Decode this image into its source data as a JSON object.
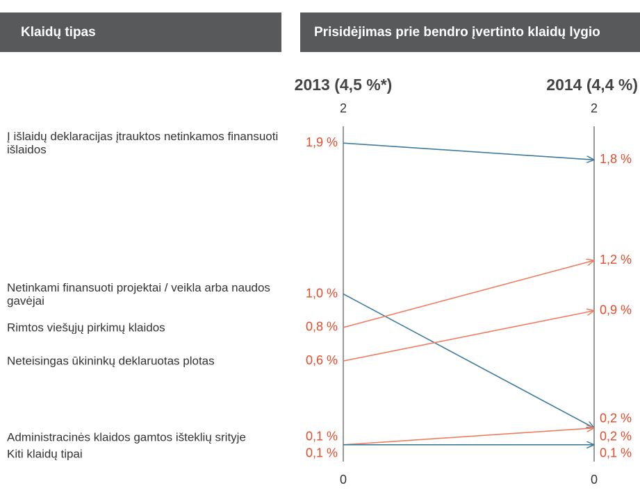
{
  "chart_data": {
    "type": "slope",
    "header_left": "Klaidų tipas",
    "header_right": "Prisidėjimas prie bendro įvertinto klaidų lygio",
    "periods": [
      "2013 (4,5 %*)",
      "2014 (4,4 %)"
    ],
    "ylim": [
      0,
      2
    ],
    "yticks": [
      0,
      2
    ],
    "series": [
      {
        "name": "Į išlaidų deklaracijas įtrauktos netinkamos finansuoti išlaidos",
        "color": "#3e7a9e",
        "values": [
          1.9,
          1.8
        ],
        "value_labels": [
          "1,9 %",
          "1,8 %"
        ]
      },
      {
        "name": "Netinkami finansuoti projektai / veikla arba naudos gavėjai",
        "color": "#3e7a9e",
        "values": [
          1.0,
          0.2
        ],
        "value_labels": [
          "1,0 %",
          "0,2 %"
        ]
      },
      {
        "name": "Rimtos viešųjų pirkimų klaidos",
        "color": "#f07b5f",
        "values": [
          0.8,
          1.2
        ],
        "value_labels": [
          "0,8 %",
          "1,2 %"
        ]
      },
      {
        "name": "Neteisingas ūkininkų deklaruotas plotas",
        "color": "#f07b5f",
        "values": [
          0.6,
          0.9
        ],
        "value_labels": [
          "0,6 %",
          "0,9 %"
        ]
      },
      {
        "name": "Administracinės klaidos gamtos išteklių srityje",
        "color": "#f07b5f",
        "values": [
          0.1,
          0.2
        ],
        "value_labels": [
          "0,1 %",
          "0,2 %"
        ]
      },
      {
        "name": "Kiti klaidų tipai",
        "color": "#3e7a9e",
        "values": [
          0.1,
          0.1
        ],
        "value_labels": [
          "0,1 %",
          "0,1 %"
        ]
      }
    ],
    "label_color": "#e8492a"
  }
}
